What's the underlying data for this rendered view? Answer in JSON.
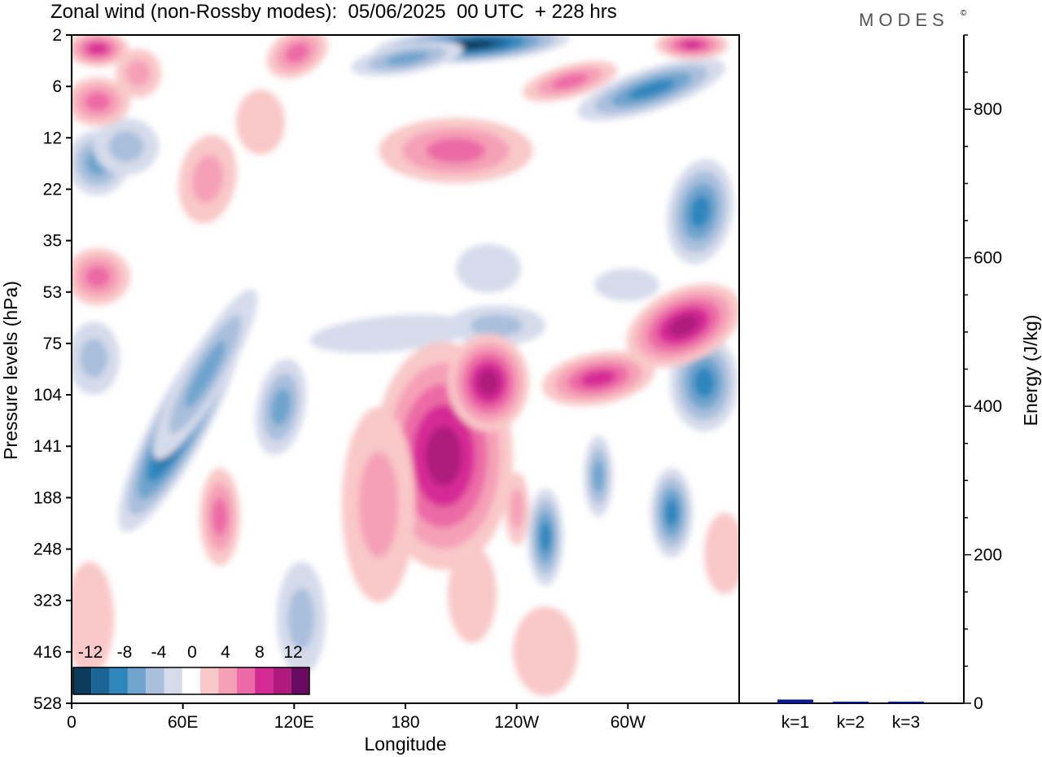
{
  "title": "Zonal wind (non-Rossby modes):  05/06/2025  00 UTC  + 228 hrs",
  "brand": "MODES",
  "brand_mark": "©",
  "colors": {
    "neg": [
      "#0d3b5c",
      "#1a6596",
      "#2f86bd",
      "#6ea4cd",
      "#a9bfdc",
      "#d6dbeb"
    ],
    "zero": "#ffffff",
    "pos": [
      "#f9c8c8",
      "#f5a0b7",
      "#ec6aa6",
      "#d52a95",
      "#ae1b7c",
      "#6a0a62"
    ],
    "energy_bar": "#0a1a8c"
  },
  "chart_data": [
    {
      "type": "heatmap",
      "title": "Zonal wind (non-Rossby modes):  05/06/2025  00 UTC  + 228 hrs",
      "xlabel": "Longitude",
      "ylabel": "Pressure levels (hPa)",
      "x_ticks": [
        "0",
        "60E",
        "120E",
        "180",
        "120W",
        "60W"
      ],
      "x_tick_values": [
        0,
        60,
        120,
        180,
        240,
        300
      ],
      "xlim": [
        0,
        360
      ],
      "y_ticks": [
        "2",
        "6",
        "12",
        "22",
        "35",
        "53",
        "75",
        "104",
        "141",
        "188",
        "248",
        "323",
        "416",
        "528"
      ],
      "colorbar_labels": [
        "-12",
        "-8",
        "-4",
        "0",
        "4",
        "8",
        "12"
      ],
      "colorbar_levels": [
        -14,
        -12,
        -10,
        -8,
        -6,
        -4,
        -2,
        2,
        4,
        6,
        8,
        10,
        12,
        14
      ],
      "features": [
        {
          "sign": "neg",
          "value": -13,
          "lon": 57,
          "level_index": 8.2,
          "note": "strongest negative core"
        },
        {
          "sign": "neg",
          "value": -12,
          "lon": 230,
          "level_index": 0,
          "note": "upper negative core"
        },
        {
          "sign": "neg",
          "value": -8,
          "lon": 316,
          "level_index": 1.3
        },
        {
          "sign": "neg",
          "value": -6,
          "lon": 340,
          "level_index": 3.5
        },
        {
          "sign": "neg",
          "value": -6,
          "lon": 348,
          "level_index": 7.3
        },
        {
          "sign": "neg",
          "value": -6,
          "lon": 260,
          "level_index": 9.8
        },
        {
          "sign": "neg",
          "value": -6,
          "lon": 326,
          "level_index": 9.4
        },
        {
          "sign": "pos",
          "value": 12,
          "lon": 200,
          "level_index": 8.5,
          "note": "strongest positive core"
        },
        {
          "sign": "pos",
          "value": 11,
          "lon": 336,
          "level_index": 5.6
        },
        {
          "sign": "pos",
          "value": 10,
          "lon": 328,
          "level_index": 0.05
        },
        {
          "sign": "pos",
          "value": 8,
          "lon": 11,
          "level_index": 0.1
        },
        {
          "sign": "pos",
          "value": 6,
          "lon": 220,
          "level_index": 2.2
        },
        {
          "sign": "pos",
          "value": 6,
          "lon": 77,
          "level_index": 9.3
        }
      ]
    },
    {
      "type": "bar",
      "categories": [
        "k=1",
        "k=2",
        "k=3"
      ],
      "values": [
        5,
        2,
        1
      ],
      "ylabel": "Energy (J/kg)",
      "y_ticks": [
        "0",
        "200",
        "400",
        "600",
        "800"
      ],
      "ylim": [
        0,
        900
      ]
    }
  ]
}
